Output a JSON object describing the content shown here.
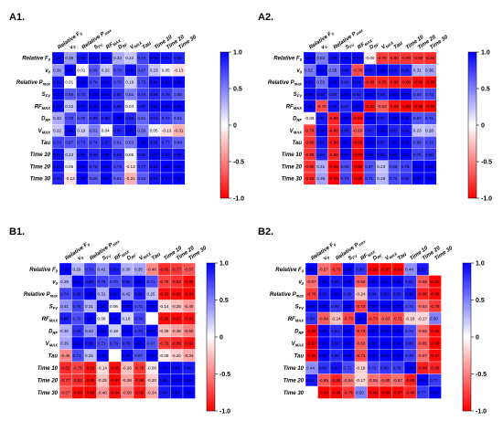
{
  "chart_data": [
    {
      "type": "heatmap",
      "title": "A1.",
      "labels": [
        "Relative F0",
        "v0",
        "Relative Pmax",
        "SFV",
        "RFMAX",
        "DRF",
        "VMAX",
        "Tau",
        "Time 10",
        "Time 20",
        "Time 30"
      ],
      "values": [
        [
          1.0,
          0.39,
          0.92,
          1.0,
          0.98,
          0.33,
          0.22,
          0.74,
          0.96,
          0.94,
          0.86
        ],
        [
          0.39,
          1.0,
          0.01,
          0.66,
          0.22,
          0.7,
          0.96,
          0.67,
          0.23,
          0.05,
          -0.13
        ],
        [
          0.92,
          0.01,
          1.0,
          0.74,
          0.97,
          0.7,
          0.19,
          0.73,
          0.94,
          0.99,
          0.99
        ],
        [
          1.0,
          0.66,
          0.74,
          1.0,
          0.98,
          0.8,
          0.51,
          0.74,
          0.86,
          0.78,
          0.65
        ],
        [
          0.98,
          0.22,
          0.97,
          0.98,
          1.0,
          0.85,
          0.04,
          0.87,
          0.98,
          0.99,
          0.99
        ],
        [
          0.33,
          0.7,
          0.7,
          0.8,
          0.85,
          1.0,
          0.85,
          0.61,
          0.83,
          0.74,
          0.61
        ],
        [
          0.22,
          0.96,
          0.19,
          0.51,
          0.04,
          0.85,
          1.0,
          0.53,
          0.05,
          -0.13,
          -0.31
        ],
        [
          0.74,
          0.67,
          0.73,
          0.74,
          0.87,
          0.61,
          0.53,
          1.0,
          0.86,
          0.77,
          0.64
        ],
        [
          0.96,
          0.23,
          0.94,
          0.86,
          0.98,
          0.83,
          0.05,
          0.86,
          1.0,
          0.93,
          0.92
        ],
        [
          0.94,
          0.05,
          0.99,
          0.78,
          0.99,
          0.74,
          -0.13,
          0.77,
          0.93,
          1.0,
          0.97
        ],
        [
          0.86,
          -0.13,
          0.99,
          0.65,
          0.99,
          0.61,
          -0.31,
          0.64,
          0.92,
          0.97,
          1.0
        ]
      ],
      "colorbar_ticks": [
        "1.0",
        "0.5",
        "0",
        "-0.5",
        "-1.0"
      ],
      "vmin": -1,
      "vmax": 1
    },
    {
      "type": "heatmap",
      "title": "A2.",
      "labels": [
        "Relative F0",
        "v0",
        "Relative Pmax",
        "SFV",
        "RFMAX",
        "DRF",
        "VMAX",
        "Tau",
        "Time 10",
        "Time 20",
        "Time 30"
      ],
      "values": [
        [
          1.0,
          0.52,
          0.93,
          0.98,
          0.98,
          -0.06,
          -0.76,
          -0.8,
          -0.8,
          -0.8,
          -0.83
        ],
        [
          0.52,
          1.0,
          0.55,
          0.9,
          -0.7,
          0.91,
          1.0,
          0.91,
          0.86,
          0.31,
          0.36
        ],
        [
          0.93,
          0.55,
          1.0,
          0.8,
          0.94,
          -0.86,
          -0.85,
          -0.9,
          -0.86,
          -0.96,
          -0.99
        ],
        [
          0.98,
          0.9,
          0.8,
          1.0,
          0.84,
          1.0,
          0.86,
          1.0,
          0.97,
          0.69,
          0.73
        ],
        [
          0.98,
          -0.7,
          0.94,
          0.84,
          1.0,
          -0.93,
          -0.63,
          -0.93,
          -0.98,
          -0.98,
          -0.99
        ],
        [
          -0.06,
          0.91,
          -0.86,
          1.0,
          -0.93,
          1.0,
          0.87,
          1.0,
          0.96,
          0.67,
          0.71
        ],
        [
          -0.76,
          1.0,
          -0.85,
          0.86,
          -0.63,
          0.87,
          1.0,
          0.87,
          0.91,
          0.23,
          0.28
        ],
        [
          -0.8,
          0.91,
          -0.9,
          1.0,
          -0.93,
          1.0,
          0.87,
          1.0,
          0.98,
          0.68,
          0.72
        ],
        [
          -0.8,
          0.86,
          -0.86,
          0.97,
          -0.98,
          0.96,
          0.91,
          0.98,
          1.0,
          0.75,
          0.8
        ],
        [
          -0.8,
          0.31,
          -0.96,
          0.69,
          -0.98,
          0.67,
          0.23,
          0.68,
          0.75,
          1.0,
          0.99
        ],
        [
          -0.83,
          0.36,
          -0.99,
          0.73,
          -0.99,
          0.71,
          0.28,
          0.72,
          0.8,
          0.99,
          1.0
        ]
      ],
      "colorbar_ticks": [
        "1.0",
        "0.5",
        "0",
        "-0.5",
        "-1.0"
      ],
      "vmin": -1,
      "vmax": 1
    },
    {
      "type": "heatmap",
      "title": "B1.",
      "labels": [
        "Relative F0",
        "v0",
        "Relative Pmax",
        "SFV",
        "RFMAX",
        "DRF",
        "VMAX",
        "Tau",
        "Time 10",
        "Time 20",
        "Time 30"
      ],
      "values": [
        [
          1.0,
          0.29,
          0.74,
          0.41,
          0.89,
          0.3,
          0.35,
          -0.46,
          -0.83,
          -0.77,
          -0.67
        ],
        [
          0.29,
          1.0,
          0.86,
          0.75,
          0.7,
          0.82,
          1.0,
          0.71,
          -0.75,
          -0.82,
          -0.95
        ],
        [
          0.74,
          0.86,
          1.0,
          0.31,
          0.97,
          0.42,
          0.89,
          0.25,
          -0.93,
          -0.95,
          -0.99
        ],
        [
          0.41,
          0.75,
          0.31,
          1.0,
          0.06,
          0.99,
          0.71,
          1.0,
          -0.14,
          -0.25,
          -0.4
        ],
        [
          0.89,
          0.7,
          0.97,
          0.06,
          1.0,
          0.18,
          0.74,
          null,
          -0.96,
          -0.97,
          -0.94
        ],
        [
          0.3,
          0.82,
          0.42,
          0.99,
          0.18,
          1.0,
          0.79,
          0.98,
          -0.26,
          -0.36,
          -0.5
        ],
        [
          0.35,
          1.0,
          0.89,
          0.71,
          0.74,
          0.79,
          1.0,
          0.67,
          -0.79,
          -0.86,
          -0.92
        ],
        [
          -0.46,
          0.71,
          0.25,
          1.0,
          null,
          0.98,
          0.67,
          1.0,
          -0.08,
          -0.2,
          -0.34
        ],
        [
          -0.83,
          -0.75,
          -0.93,
          -0.14,
          -0.96,
          -0.26,
          -0.79,
          -0.08,
          1.0,
          0.95,
          0.9
        ],
        [
          -0.77,
          -0.82,
          -0.95,
          -0.25,
          -0.97,
          -0.36,
          -0.86,
          -0.2,
          0.95,
          1.0,
          0.98
        ],
        [
          -0.67,
          -0.95,
          -0.99,
          -0.4,
          -0.94,
          -0.5,
          -0.92,
          -0.34,
          0.9,
          0.98,
          1.0
        ]
      ],
      "colorbar_ticks": [
        "1.0",
        "0.5",
        "0",
        "-0.5",
        "-1.0"
      ],
      "vmin": -1,
      "vmax": 1
    },
    {
      "type": "heatmap",
      "title": "B2.",
      "labels": [
        "Relative F0",
        "v0",
        "Relative Pmax",
        "SFV",
        "RFMAX",
        "DRF",
        "VMAX",
        "Tau",
        "Time 10",
        "Time 20",
        "Time 30"
      ],
      "values": [
        [
          1.0,
          -0.57,
          -0.76,
          0.99,
          0.8,
          -0.99,
          -0.97,
          -0.99,
          0.44,
          0.91,
          null
        ],
        [
          -0.57,
          1.0,
          0.9,
          0.99,
          -0.64,
          0.99,
          1.0,
          0.99,
          0.81,
          -0.65,
          -0.99
        ],
        [
          -0.76,
          0.9,
          1.0,
          0.8,
          -0.24,
          0.84,
          0.9,
          0.85,
          0.93,
          -0.86,
          -0.96
        ],
        [
          0.99,
          0.99,
          0.8,
          1.0,
          -0.73,
          1.0,
          1.0,
          0.99,
          0.72,
          -0.54,
          -0.79
        ],
        [
          0.8,
          -0.64,
          -0.24,
          -0.73,
          1.0,
          -0.73,
          -0.63,
          -0.71,
          -0.18,
          -0.17,
          0.5
        ],
        [
          -0.99,
          0.99,
          0.84,
          1.0,
          -0.73,
          1.0,
          0.99,
          1.0,
          0.72,
          -0.55,
          -0.96
        ],
        [
          -0.97,
          1.0,
          0.9,
          1.0,
          -0.63,
          0.99,
          1.0,
          0.99,
          0.8,
          -0.65,
          -0.99
        ],
        [
          -0.99,
          0.99,
          0.85,
          0.99,
          -0.71,
          1.0,
          0.99,
          1.0,
          0.76,
          -0.57,
          -0.97
        ],
        [
          0.44,
          0.81,
          0.93,
          0.72,
          -0.18,
          0.72,
          0.8,
          0.76,
          1.0,
          -0.88,
          -0.86
        ],
        [
          0.91,
          -0.65,
          -0.86,
          -0.54,
          -0.17,
          -0.55,
          -0.65,
          -0.57,
          -0.88,
          1.0,
          0.77
        ],
        [
          null,
          -0.99,
          -0.96,
          -0.79,
          0.5,
          -0.96,
          -0.99,
          -0.97,
          -0.86,
          0.77,
          1.0
        ]
      ],
      "colorbar_ticks": [
        "1.0",
        "0.5",
        "0",
        "-0.5",
        "-1.0"
      ],
      "vmin": -1,
      "vmax": 1
    }
  ]
}
